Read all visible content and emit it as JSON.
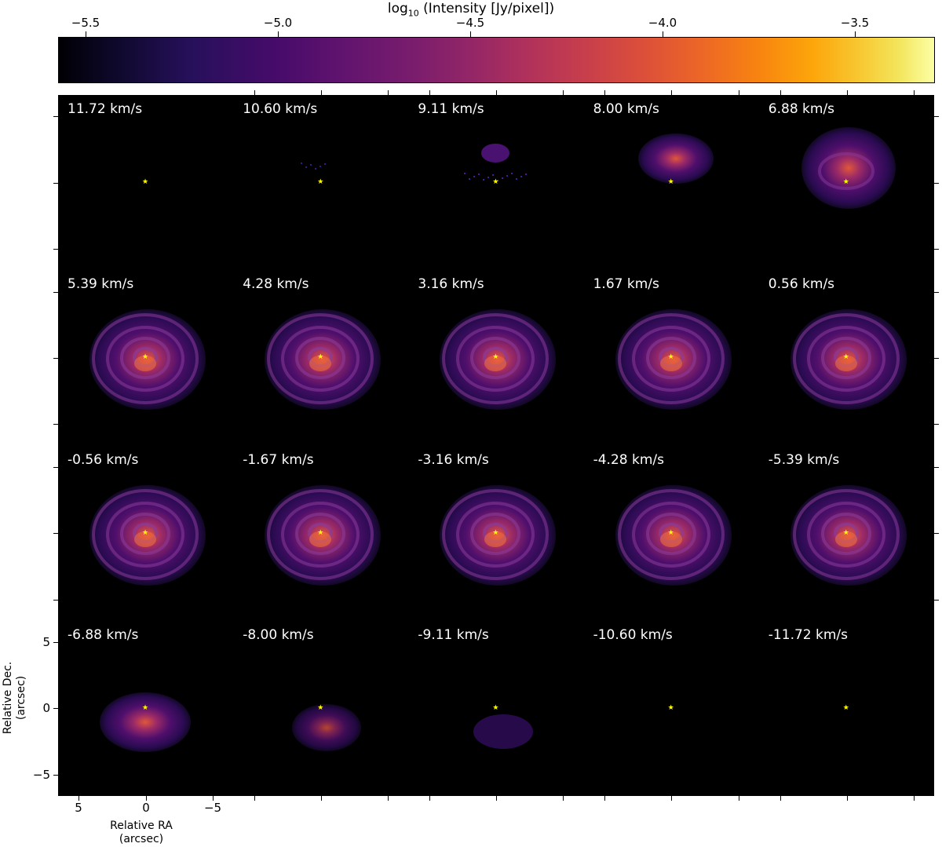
{
  "colorbar": {
    "title_prefix": "log",
    "title_sub": "10",
    "title_suffix": " (Intensity [Jy/pixel])",
    "ticks": [
      "−5.5",
      "−5.0",
      "−4.5",
      "−4.0",
      "−3.5"
    ],
    "colormap": "inferno"
  },
  "panels": [
    {
      "label": "11.72 km/s",
      "emission": "none"
    },
    {
      "label": "10.60 km/s",
      "emission": "specks"
    },
    {
      "label": "9.11 km/s",
      "emission": "small"
    },
    {
      "label": "8.00 km/s",
      "emission": "upper"
    },
    {
      "label": "6.88 km/s",
      "emission": "upper-large"
    },
    {
      "label": "5.39 km/s",
      "emission": "disk"
    },
    {
      "label": "4.28 km/s",
      "emission": "disk"
    },
    {
      "label": "3.16 km/s",
      "emission": "disk"
    },
    {
      "label": "1.67 km/s",
      "emission": "disk"
    },
    {
      "label": "0.56 km/s",
      "emission": "disk"
    },
    {
      "label": "-0.56 km/s",
      "emission": "disk"
    },
    {
      "label": "-1.67 km/s",
      "emission": "disk"
    },
    {
      "label": "-3.16 km/s",
      "emission": "disk"
    },
    {
      "label": "-4.28 km/s",
      "emission": "disk"
    },
    {
      "label": "-5.39 km/s",
      "emission": "disk"
    },
    {
      "label": "-6.88 km/s",
      "emission": "lower-large"
    },
    {
      "label": "-8.00 km/s",
      "emission": "lower"
    },
    {
      "label": "-9.11 km/s",
      "emission": "lower-small"
    },
    {
      "label": "-10.60 km/s",
      "emission": "none"
    },
    {
      "label": "-11.72 km/s",
      "emission": "none"
    }
  ],
  "axes": {
    "ylabel_line1": "Relative Dec.",
    "ylabel_line2": "(arcsec)",
    "xlabel_line1": "Relative RA",
    "xlabel_line2": "(arcsec)",
    "yticks": [
      "5",
      "0",
      "−5"
    ],
    "xticks": [
      "5",
      "0",
      "−5"
    ]
  },
  "colors": {
    "background": "#000000",
    "star": "#ffff00",
    "label": "#ffffff"
  }
}
